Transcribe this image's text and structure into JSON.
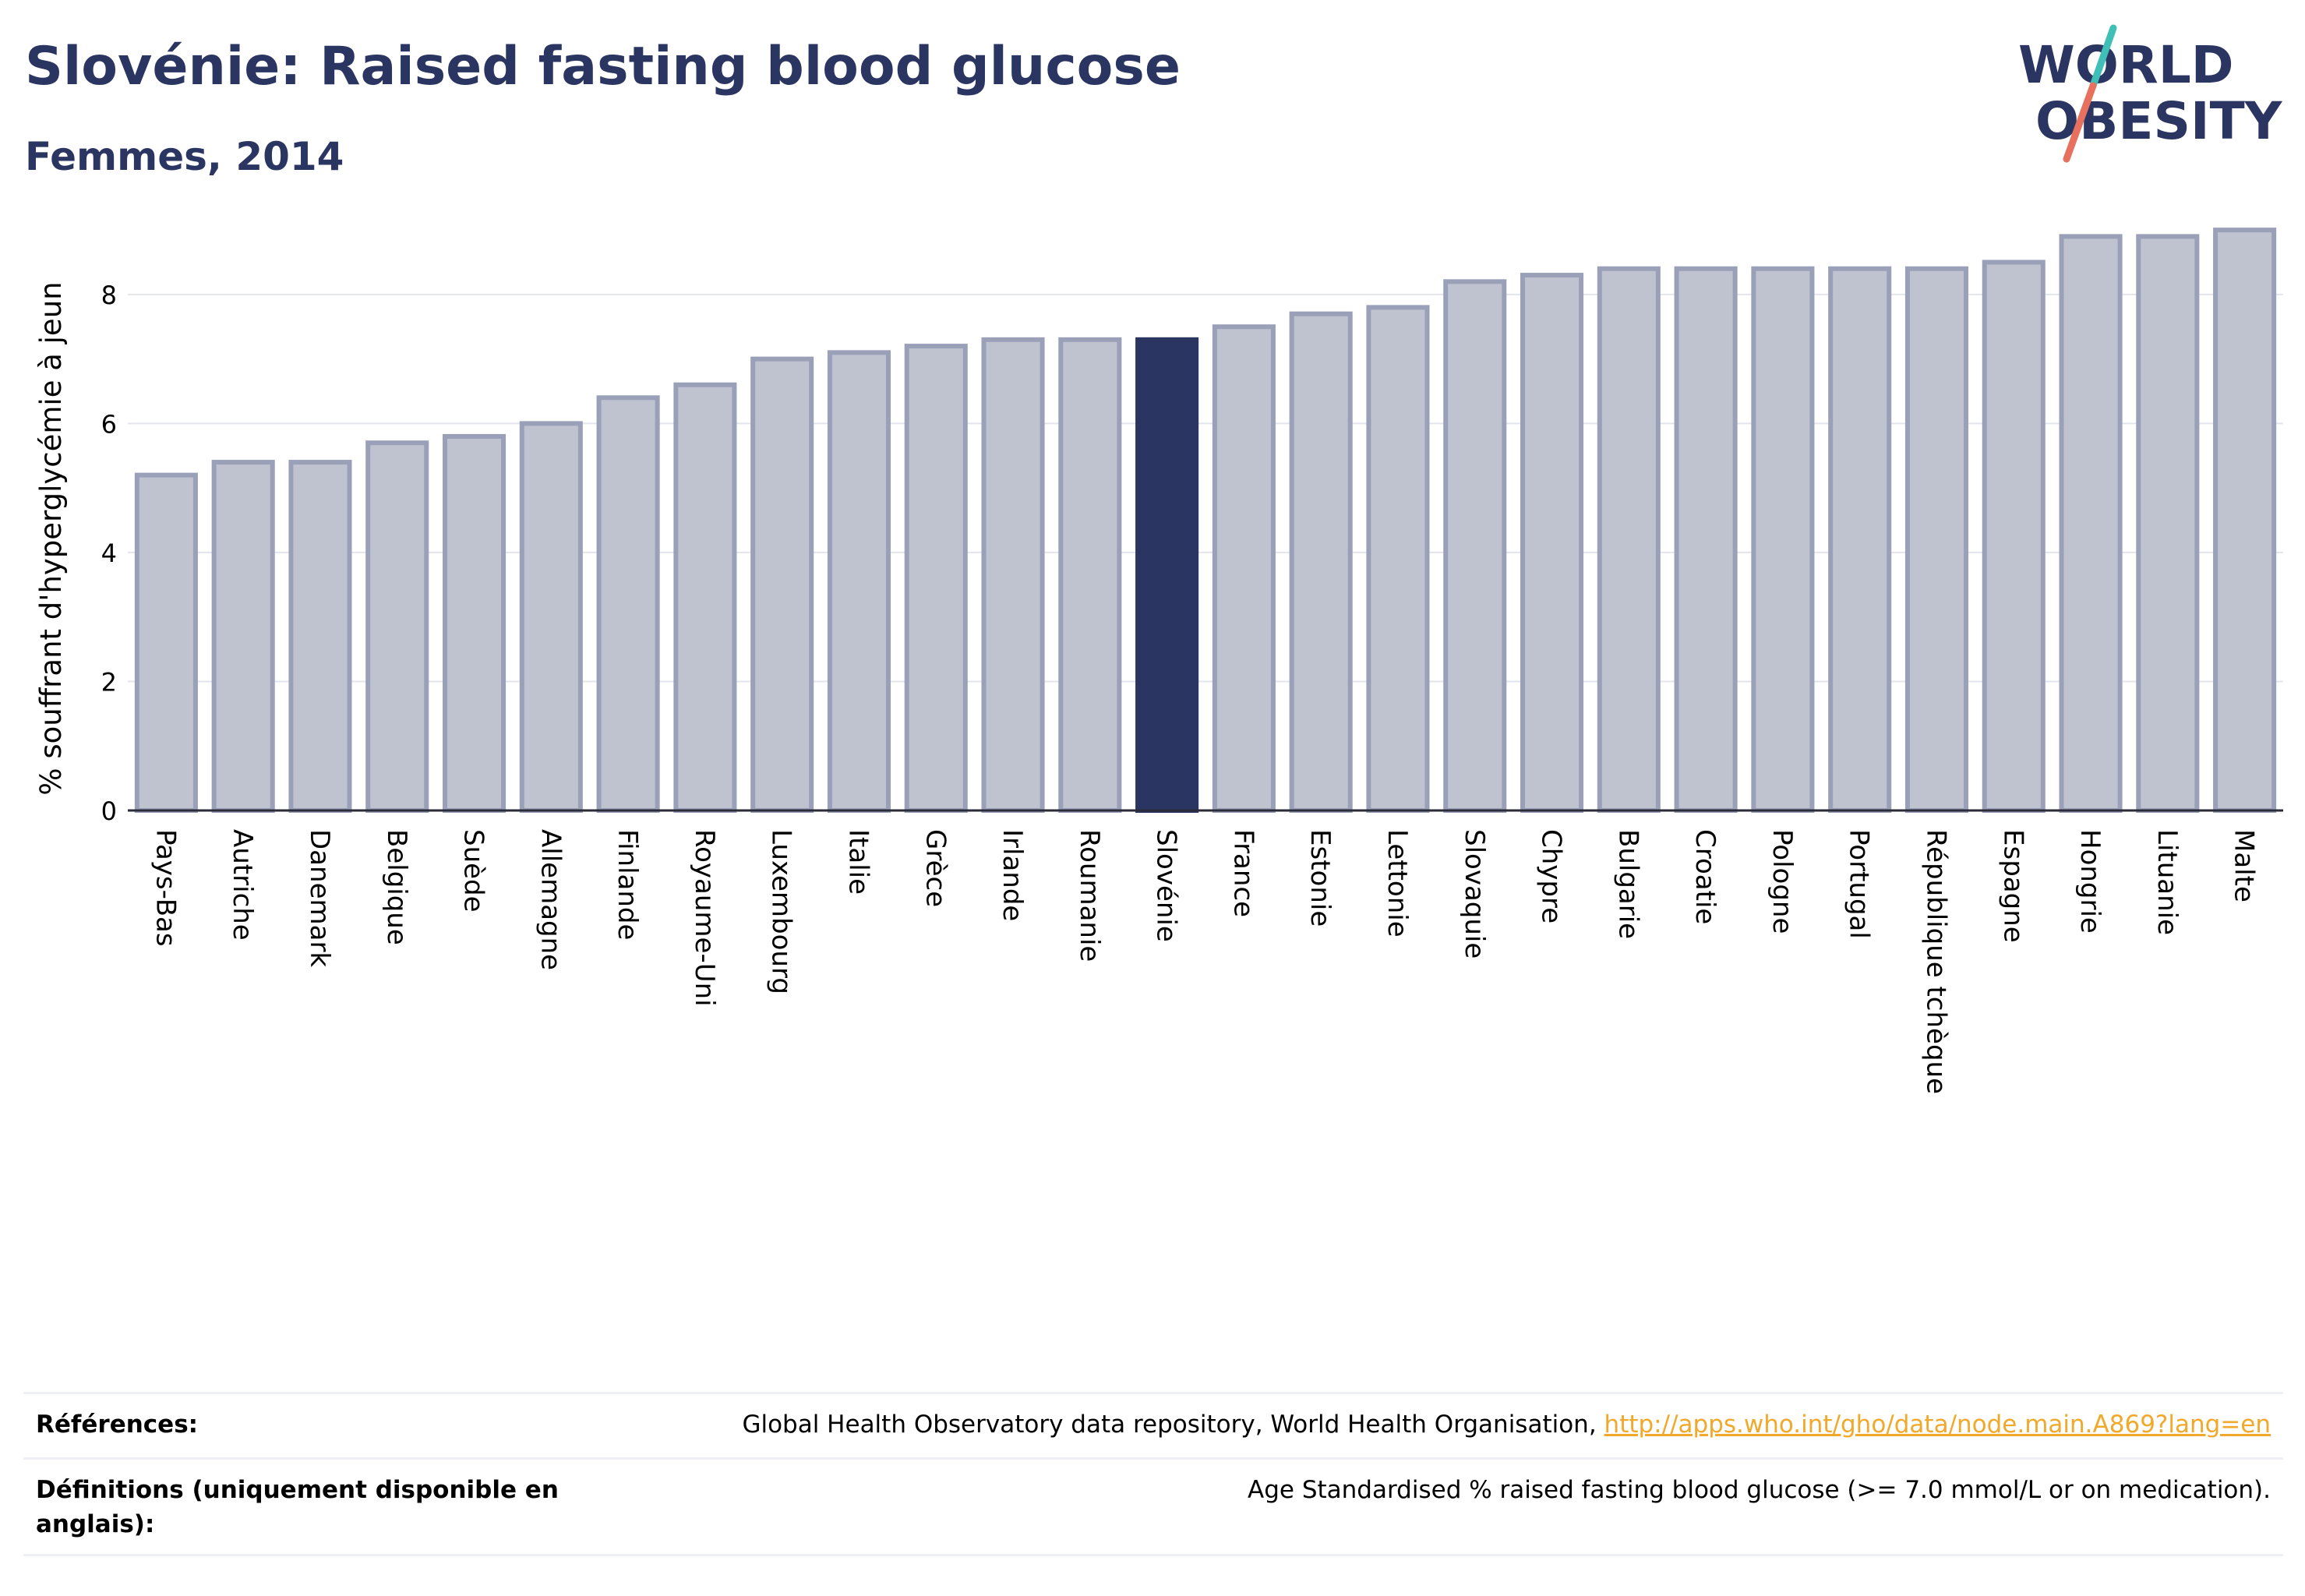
{
  "header": {
    "title": "Slovénie: Raised fasting blood glucose",
    "subtitle": "Femmes, 2014"
  },
  "logo": {
    "line1": "WORLD",
    "line2": "OBESITY",
    "colors": {
      "text": "#2b3561",
      "slash_top": "#3fbfb6",
      "slash_bottom": "#e8705f"
    }
  },
  "chart_data": {
    "type": "bar",
    "ylabel": "% souffrant d'hyperglycémie à jeun",
    "ylim": [
      0,
      9.4
    ],
    "yticks": [
      0,
      2,
      4,
      6,
      8
    ],
    "grid": true,
    "highlight": "Slovénie",
    "colors": {
      "bar": "#bfc2cf",
      "bar_border": "#9aa0b8",
      "highlight": "#2b3561"
    },
    "categories": [
      "Pays-Bas",
      "Autriche",
      "Danemark",
      "Belgique",
      "Suède",
      "Allemagne",
      "Finlande",
      "Royaume-Uni",
      "Luxembourg",
      "Italie",
      "Grèce",
      "Irlande",
      "Roumanie",
      "Slovénie",
      "France",
      "Estonie",
      "Lettonie",
      "Slovaquie",
      "Chypre",
      "Bulgarie",
      "Croatie",
      "Pologne",
      "Portugal",
      "République tchèque",
      "Espagne",
      "Hongrie",
      "Lituanie",
      "Malte"
    ],
    "values": [
      5.2,
      5.4,
      5.4,
      5.7,
      5.8,
      6.0,
      6.4,
      6.6,
      7.0,
      7.1,
      7.2,
      7.3,
      7.3,
      7.3,
      7.5,
      7.7,
      7.8,
      8.2,
      8.3,
      8.4,
      8.4,
      8.4,
      8.4,
      8.4,
      8.5,
      8.9,
      8.9,
      9.0
    ]
  },
  "footer": {
    "references_label": "Références:",
    "references_text": "Global Health Observatory data repository, World Health Organisation, ",
    "references_link": "http://apps.who.int/gho/data/node.main.A869?lang=en",
    "definitions_label": "Définitions (uniquement disponible en anglais):",
    "definitions_text": "Age Standardised % raised fasting blood glucose (>= 7.0 mmol/L or on medication)."
  }
}
